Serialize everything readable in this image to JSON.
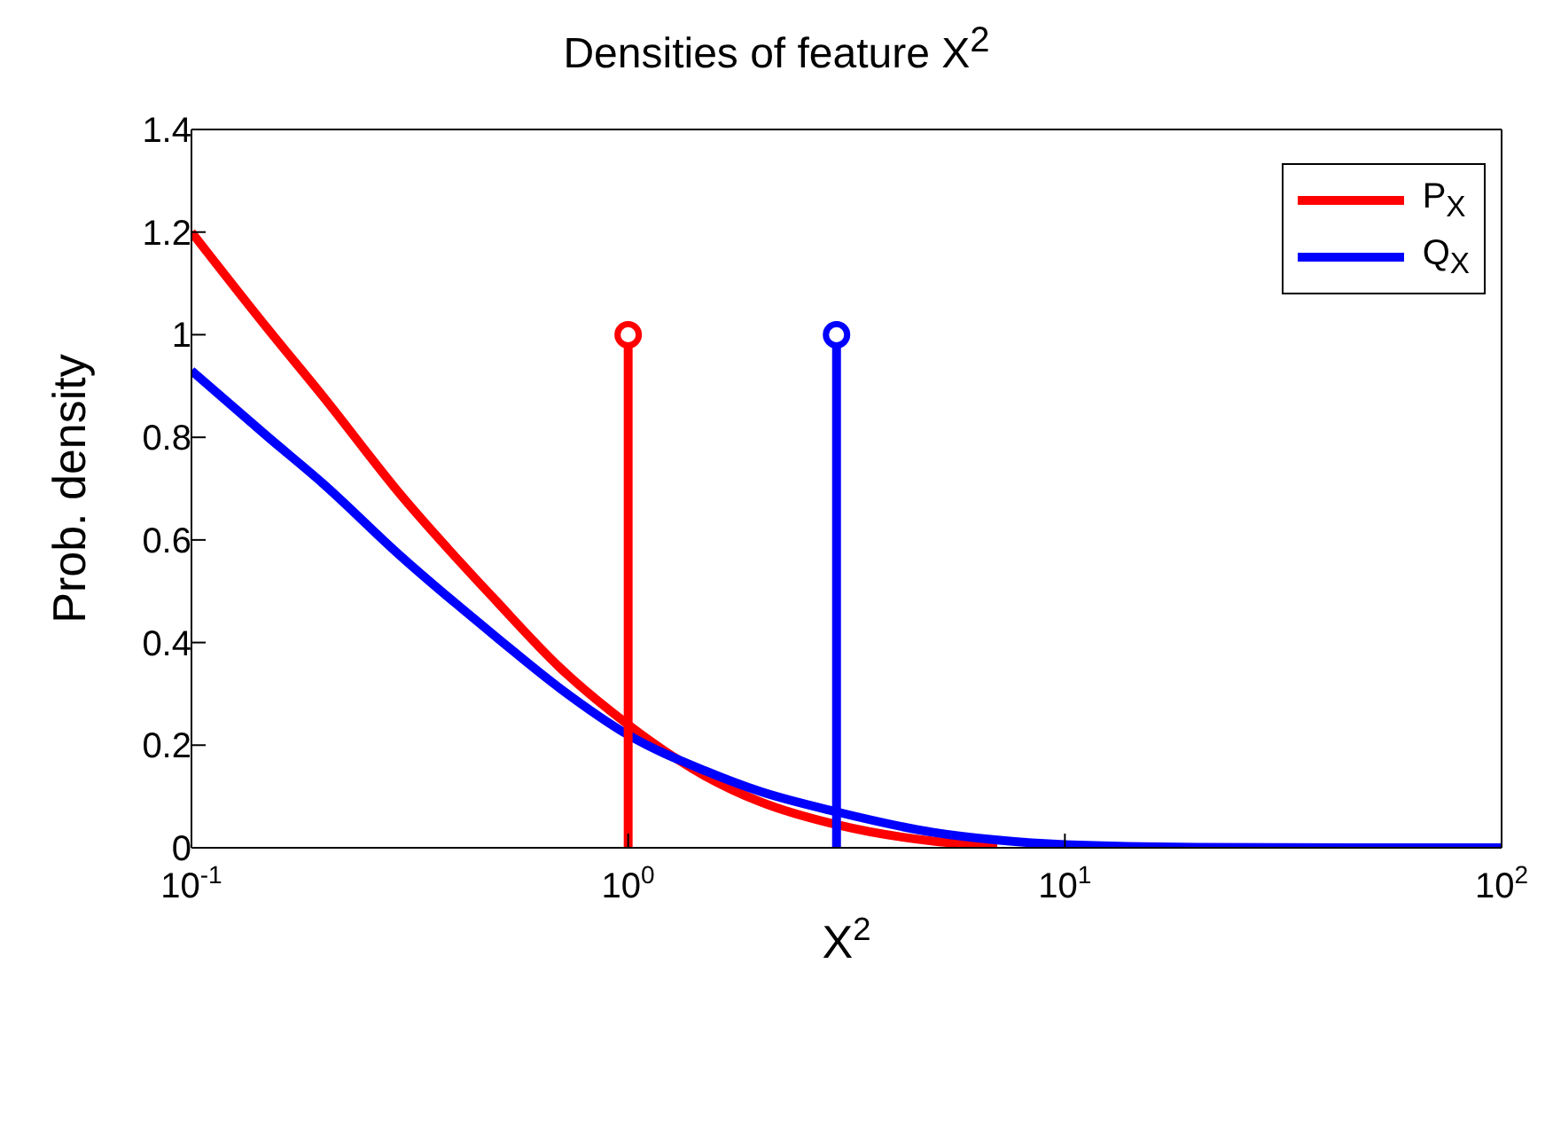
{
  "chart_data": {
    "type": "line",
    "title": "Densities of feature X$^{2}$",
    "xlabel": "X$^{2}$",
    "ylabel": "Prob. density",
    "log": "x",
    "xlim": [
      0.1,
      100
    ],
    "xticks": [
      {
        "value": 0.1,
        "label": "10$^{-1}$"
      },
      {
        "value": 1,
        "label": "10$^{0}$"
      },
      {
        "value": 10,
        "label": "10$^{1}$"
      },
      {
        "value": 100,
        "label": "10$^{2}$"
      }
    ],
    "ylim": [
      0,
      1.4
    ],
    "yticks": [
      0,
      0.2,
      0.4,
      0.6,
      0.8,
      1,
      1.2,
      1.4
    ],
    "legend": "top right",
    "line_style": "solid",
    "series": [
      {
        "name": "P$_{X}$",
        "color": "#ff0000",
        "x": [
          0.1,
          0.15,
          0.2,
          0.3,
          0.5,
          0.7,
          1,
          1.5,
          2,
          3,
          5,
          7
        ],
        "values": [
          1.2,
          1.01,
          0.88,
          0.69,
          0.48,
          0.35,
          0.24,
          0.14,
          0.09,
          0.045,
          0.013,
          0.004
        ]
      },
      {
        "name": "Q$_{X}$",
        "color": "#0000ff",
        "x": [
          0.1,
          0.15,
          0.2,
          0.3,
          0.5,
          0.7,
          1,
          1.5,
          2,
          3,
          5,
          7,
          10,
          20,
          50,
          100
        ],
        "values": [
          0.93,
          0.8,
          0.71,
          0.57,
          0.41,
          0.31,
          0.22,
          0.15,
          0.11,
          0.07,
          0.03,
          0.015,
          0.006,
          0.001,
          0,
          0
        ]
      },
      {
        "type": "lollipop",
        "color": "#ff0000",
        "x": [
          1
        ],
        "values": [
          1
        ]
      },
      {
        "type": "lollipop",
        "color": "#0000ff",
        "x": [
          3
        ],
        "values": [
          1
        ]
      }
    ]
  }
}
